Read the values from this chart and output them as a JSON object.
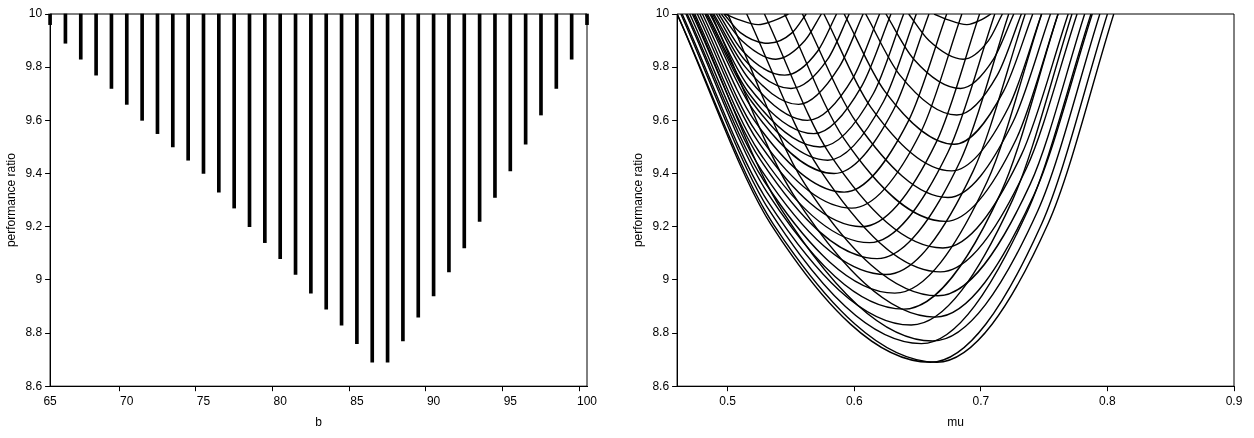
{
  "chart_data": [
    {
      "type": "bar",
      "xlabel": "b",
      "ylabel": "performance ratio",
      "color": "#000000",
      "categories": [
        "65",
        null,
        null,
        null,
        null,
        "70",
        null,
        null,
        null,
        null,
        "75",
        null,
        null,
        null,
        null,
        "80",
        null,
        null,
        null,
        null,
        "85",
        null,
        null,
        null,
        null,
        "90",
        null,
        null,
        null,
        null,
        "95",
        null,
        null,
        null,
        null,
        "100"
      ],
      "base": [
        9.96,
        9.89,
        9.83,
        9.77,
        9.72,
        9.66,
        9.6,
        9.55,
        9.5,
        9.45,
        9.4,
        9.33,
        9.27,
        9.2,
        9.14,
        9.08,
        9.02,
        8.95,
        8.89,
        8.83,
        8.76,
        8.69,
        8.69,
        8.77,
        8.86,
        8.94,
        9.03,
        9.12,
        9.22,
        9.31,
        9.41,
        9.51,
        9.62,
        9.72,
        9.83,
        9.96
      ],
      "values": [
        0.04,
        0.11,
        0.17,
        0.23,
        0.28,
        0.34,
        0.4,
        0.45,
        0.5,
        0.55,
        0.6,
        0.67,
        0.73,
        0.8,
        0.86,
        0.92,
        0.98,
        1.05,
        1.11,
        1.17,
        1.24,
        1.31,
        1.31,
        1.23,
        1.14,
        1.06,
        0.97,
        0.88,
        0.78,
        0.69,
        0.59,
        0.49,
        0.38,
        0.28,
        0.17,
        0.04
      ],
      "ylim": [
        8.6,
        10
      ],
      "yticks": [
        8.6,
        8.8,
        9,
        9.2,
        9.4,
        9.6,
        9.8,
        10
      ]
    },
    {
      "type": "line",
      "xlabel": "mu",
      "ylabel": "performance ratio",
      "xlim": [
        0.46,
        0.9
      ],
      "xticks": [
        0.5,
        0.6,
        0.7,
        0.8,
        0.9
      ],
      "ylim": [
        8.6,
        10
      ],
      "yticks": [
        8.6,
        8.8,
        9,
        9.2,
        9.4,
        9.6,
        9.8,
        10
      ],
      "series": [
        {
          "color": "#000000",
          "x": [
            0.498,
            0.508,
            0.524,
            0.539,
            0.548
          ],
          "values": [
            10,
            9.98,
            9.96,
            9.98,
            10
          ]
        },
        {
          "color": "#000000",
          "x": [
            0.497,
            0.51,
            0.532,
            0.551,
            0.562
          ],
          "values": [
            10,
            9.93,
            9.89,
            9.93,
            10
          ]
        },
        {
          "color": "#000000",
          "x": [
            0.495,
            0.511,
            0.538,
            0.561,
            0.574
          ],
          "values": [
            10,
            9.9,
            9.83,
            9.9,
            10
          ]
        },
        {
          "color": "#000000",
          "x": [
            0.493,
            0.512,
            0.545,
            0.571,
            0.586
          ],
          "values": [
            10,
            9.86,
            9.77,
            9.86,
            10
          ]
        },
        {
          "color": "#000000",
          "x": [
            0.491,
            0.513,
            0.55,
            0.579,
            0.596
          ],
          "values": [
            10,
            9.83,
            9.72,
            9.83,
            10
          ]
        },
        {
          "color": "#000000",
          "x": [
            0.489,
            0.514,
            0.556,
            0.588,
            0.607
          ],
          "values": [
            10,
            9.8,
            9.66,
            9.8,
            10
          ]
        },
        {
          "color": "#000000",
          "x": [
            0.488,
            0.516,
            0.563,
            0.599,
            0.62
          ],
          "values": [
            10,
            9.76,
            9.6,
            9.76,
            10
          ]
        },
        {
          "color": "#000000",
          "x": [
            0.486,
            0.516,
            0.568,
            0.606,
            0.629
          ],
          "values": [
            10,
            9.73,
            9.55,
            9.73,
            10
          ]
        },
        {
          "color": "#000000",
          "x": [
            0.484,
            0.517,
            0.573,
            0.615,
            0.639
          ],
          "values": [
            10,
            9.7,
            9.5,
            9.7,
            10
          ]
        },
        {
          "color": "#000000",
          "x": [
            0.483,
            0.519,
            0.579,
            0.623,
            0.649
          ],
          "values": [
            10,
            9.67,
            9.45,
            9.67,
            10
          ]
        },
        {
          "color": "#000000",
          "x": [
            0.482,
            0.52,
            0.584,
            0.631,
            0.659
          ],
          "values": [
            10,
            9.64,
            9.4,
            9.64,
            10
          ]
        },
        {
          "color": "#000000",
          "x": [
            0.48,
            0.521,
            0.592,
            0.643,
            0.673
          ],
          "values": [
            10,
            9.6,
            9.33,
            9.6,
            10
          ]
        },
        {
          "color": "#000000",
          "x": [
            0.478,
            0.522,
            0.598,
            0.653,
            0.685
          ],
          "values": [
            10,
            9.56,
            9.27,
            9.56,
            10
          ]
        },
        {
          "color": "#000000",
          "x": [
            0.476,
            0.524,
            0.606,
            0.665,
            0.699
          ],
          "values": [
            10,
            9.52,
            9.2,
            9.52,
            10
          ]
        },
        {
          "color": "#000000",
          "x": [
            0.474,
            0.525,
            0.612,
            0.674,
            0.711
          ],
          "values": [
            10,
            9.48,
            9.14,
            9.48,
            10
          ]
        },
        {
          "color": "#000000",
          "x": [
            0.472,
            0.526,
            0.618,
            0.684,
            0.722
          ],
          "values": [
            10,
            9.45,
            9.08,
            9.45,
            10
          ]
        },
        {
          "color": "#000000",
          "x": [
            0.47,
            0.527,
            0.625,
            0.694,
            0.735
          ],
          "values": [
            10,
            9.41,
            9.02,
            9.41,
            10
          ]
        },
        {
          "color": "#000000",
          "x": [
            0.468,
            0.529,
            0.632,
            0.705,
            0.748
          ],
          "values": [
            10,
            9.37,
            8.95,
            9.37,
            10
          ]
        },
        {
          "color": "#000000",
          "x": [
            0.467,
            0.531,
            0.639,
            0.716,
            0.761
          ],
          "values": [
            10,
            9.33,
            8.89,
            9.33,
            10
          ]
        },
        {
          "color": "#000000",
          "x": [
            0.464,
            0.531,
            0.645,
            0.725,
            0.772
          ],
          "values": [
            10,
            9.3,
            8.83,
            9.3,
            10
          ]
        },
        {
          "color": "#000000",
          "x": [
            0.463,
            0.533,
            0.653,
            0.737,
            0.787
          ],
          "values": [
            10,
            9.26,
            8.76,
            9.26,
            10
          ]
        },
        {
          "color": "#000000",
          "x": [
            0.46,
            0.534,
            0.66,
            0.748,
            0.8
          ],
          "values": [
            10,
            9.21,
            8.69,
            9.21,
            10
          ]
        },
        {
          "color": "#000000",
          "x": [
            0.46,
            0.536,
            0.665,
            0.753,
            0.805
          ],
          "values": [
            10,
            9.21,
            8.69,
            9.21,
            10
          ]
        },
        {
          "color": "#000000",
          "x": [
            0.473,
            0.543,
            0.662,
            0.745,
            0.794
          ],
          "values": [
            10,
            9.26,
            8.77,
            9.26,
            10
          ]
        },
        {
          "color": "#000000",
          "x": [
            0.487,
            0.552,
            0.664,
            0.742,
            0.788
          ],
          "values": [
            10,
            9.32,
            8.86,
            9.32,
            10
          ]
        },
        {
          "color": "#000000",
          "x": [
            0.5,
            0.561,
            0.666,
            0.739,
            0.782
          ],
          "values": [
            10,
            9.36,
            8.94,
            9.36,
            10
          ]
        },
        {
          "color": "#000000",
          "x": [
            0.515,
            0.572,
            0.668,
            0.736,
            0.776
          ],
          "values": [
            10,
            9.42,
            9.03,
            9.42,
            10
          ]
        },
        {
          "color": "#000000",
          "x": [
            0.529,
            0.581,
            0.67,
            0.732,
            0.769
          ],
          "values": [
            10,
            9.47,
            9.12,
            9.47,
            10
          ]
        },
        {
          "color": "#000000",
          "x": [
            0.545,
            0.592,
            0.672,
            0.728,
            0.761
          ],
          "values": [
            10,
            9.53,
            9.22,
            9.53,
            10
          ]
        },
        {
          "color": "#000000",
          "x": [
            0.559,
            0.602,
            0.674,
            0.725,
            0.755
          ],
          "values": [
            10,
            9.59,
            9.31,
            9.59,
            10
          ]
        },
        {
          "color": "#000000",
          "x": [
            0.576,
            0.613,
            0.677,
            0.722,
            0.748
          ],
          "values": [
            10,
            9.65,
            9.41,
            9.65,
            10
          ]
        },
        {
          "color": "#000000",
          "x": [
            0.592,
            0.624,
            0.679,
            0.718,
            0.741
          ],
          "values": [
            10,
            9.71,
            9.51,
            9.71,
            10
          ]
        },
        {
          "color": "#000000",
          "x": [
            0.609,
            0.636,
            0.681,
            0.713,
            0.732
          ],
          "values": [
            10,
            9.77,
            9.62,
            9.77,
            10
          ]
        },
        {
          "color": "#000000",
          "x": [
            0.625,
            0.647,
            0.684,
            0.71,
            0.726
          ],
          "values": [
            10,
            9.83,
            9.72,
            9.83,
            10
          ]
        },
        {
          "color": "#000000",
          "x": [
            0.643,
            0.659,
            0.686,
            0.706,
            0.717
          ],
          "values": [
            10,
            9.9,
            9.83,
            9.9,
            10
          ]
        },
        {
          "color": "#000000",
          "x": [
            0.663,
            0.673,
            0.689,
            0.701,
            0.708
          ],
          "values": [
            10,
            9.98,
            9.96,
            9.98,
            10
          ]
        }
      ]
    }
  ]
}
